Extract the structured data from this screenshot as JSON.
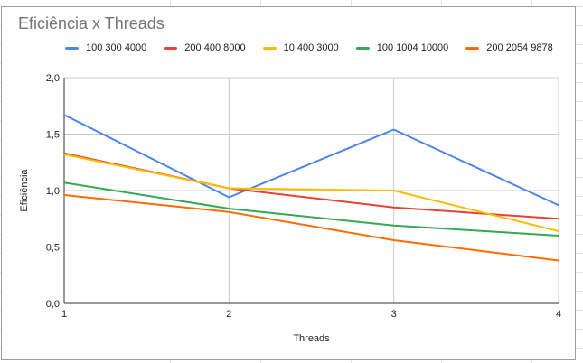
{
  "chart_data": {
    "type": "line",
    "title": "Eficiência x Threads",
    "xlabel": "Threads",
    "ylabel": "Eficiência",
    "x": [
      1,
      2,
      3,
      4
    ],
    "x_tick_labels": [
      "1",
      "2",
      "3",
      "4"
    ],
    "ylim": [
      0,
      2
    ],
    "y_ticks": [
      0,
      0.5,
      1,
      1.5,
      2
    ],
    "y_tick_labels": [
      "0,0",
      "0,5",
      "1,0",
      "1,5",
      "2,0"
    ],
    "grid": true,
    "legend_position": "top",
    "series": [
      {
        "name": "100 300 4000",
        "color": "#4a86e8",
        "values": [
          1.67,
          0.94,
          1.54,
          0.87
        ]
      },
      {
        "name": "200 400 8000",
        "color": "#e84235",
        "values": [
          1.33,
          1.02,
          0.85,
          0.75
        ]
      },
      {
        "name": "10 400 3000",
        "color": "#fbbc04",
        "values": [
          1.32,
          1.02,
          1.0,
          0.64
        ]
      },
      {
        "name": "100 1004 10000",
        "color": "#34a853",
        "values": [
          1.07,
          0.84,
          0.69,
          0.6
        ]
      },
      {
        "name": "200 2054 9878",
        "color": "#ff6d01",
        "values": [
          0.96,
          0.81,
          0.56,
          0.38
        ]
      }
    ]
  }
}
